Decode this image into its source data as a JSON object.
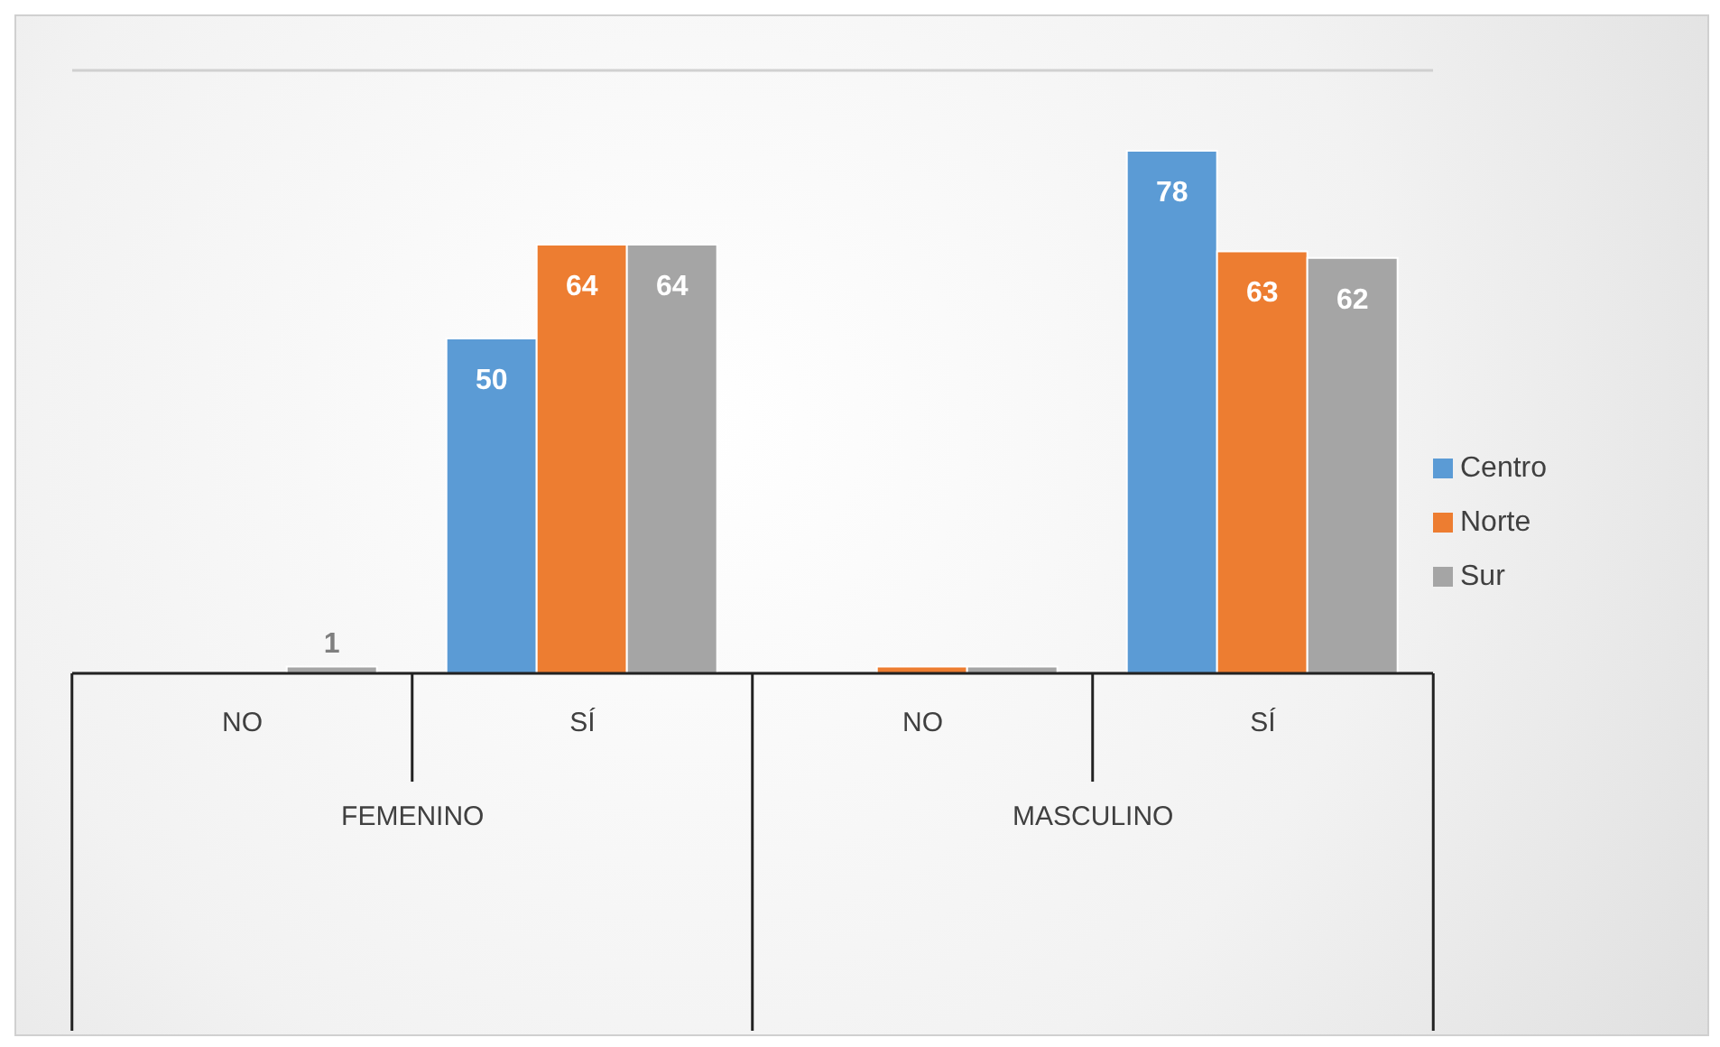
{
  "chart_data": {
    "type": "bar",
    "categories": [
      "NO",
      "SÍ",
      "NO",
      "SÍ"
    ],
    "annotations": [
      "FEMENINO",
      "MASCULINO"
    ],
    "series": [
      {
        "name": "Centro",
        "color": "#5b9bd5",
        "values": [
          null,
          50,
          null,
          78
        ],
        "value_labels": [
          null,
          "50",
          null,
          "78"
        ]
      },
      {
        "name": "Norte",
        "color": "#ed7d31",
        "values": [
          null,
          64,
          1,
          63
        ],
        "value_labels": [
          null,
          "64",
          null,
          "63"
        ]
      },
      {
        "name": "Sur",
        "color": "#a5a5a5",
        "values": [
          1,
          64,
          1,
          62
        ],
        "value_labels": [
          "1",
          "64",
          null,
          "62"
        ]
      }
    ],
    "ylim": [
      0,
      90
    ],
    "tick_labels": "x",
    "grid": "y",
    "legend": "right"
  }
}
